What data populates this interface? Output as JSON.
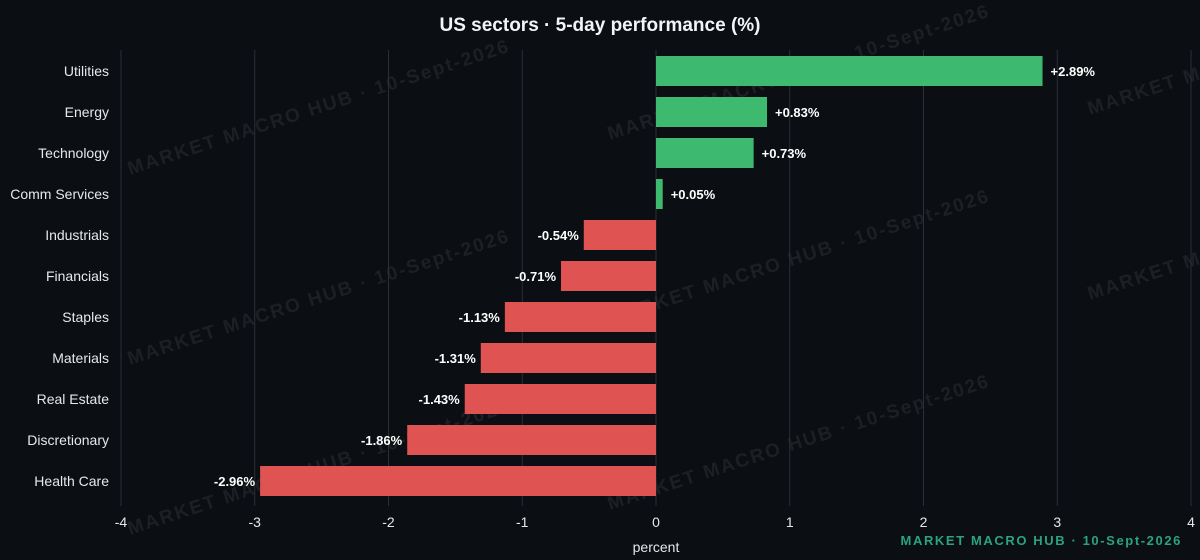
{
  "chart_data": {
    "type": "bar",
    "orientation": "horizontal",
    "title": "US sectors · 5-day performance (%)",
    "xlabel": "percent",
    "ylabel": "",
    "xlim": [
      -4,
      4
    ],
    "xticks": [
      -4,
      -3,
      -2,
      -1,
      0,
      1,
      2,
      3,
      4
    ],
    "grid": "vertical",
    "categories": [
      "Utilities",
      "Energy",
      "Technology",
      "Comm Services",
      "Industrials",
      "Financials",
      "Staples",
      "Materials",
      "Real Estate",
      "Discretionary",
      "Health Care"
    ],
    "values": [
      2.89,
      0.83,
      0.73,
      0.05,
      -0.54,
      -0.71,
      -1.13,
      -1.31,
      -1.43,
      -1.86,
      -2.96
    ],
    "data_labels": [
      "+2.89%",
      "+0.83%",
      "+0.73%",
      "+0.05%",
      "-0.54%",
      "-0.71%",
      "-1.13%",
      "-1.31%",
      "-1.43%",
      "-1.86%",
      "-2.96%"
    ]
  },
  "watermark": "MARKET MACRO HUB · 10-Sept-2026",
  "credit": "MARKET MACRO HUB · 10-Sept-2026",
  "colors": {
    "background": "#0b0e13",
    "positive": "#3dba6f",
    "negative": "#e05353",
    "grid": "#2b2f36",
    "text": "#e6e8eb",
    "credit": "#2aa37e"
  }
}
